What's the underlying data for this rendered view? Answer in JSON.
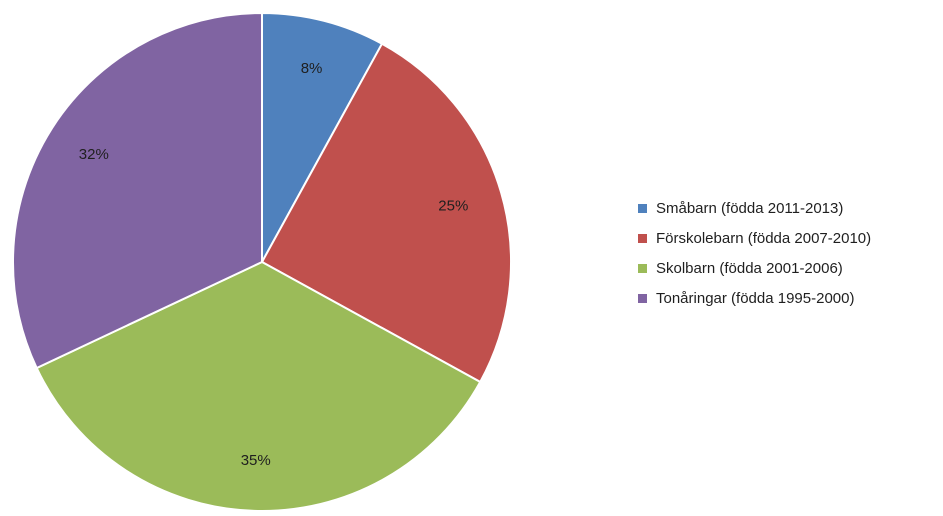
{
  "chart_data": {
    "type": "pie",
    "legend_position": "right",
    "series": [
      {
        "values": [
          8,
          25,
          35,
          32
        ],
        "labels": [
          "8%",
          "25%",
          "35%",
          "32%"
        ]
      }
    ],
    "categories": [
      "Småbarn (födda 2011-2013)",
      "Förskolebarn (födda 2007-2010)",
      "Skolbarn (födda 2001-2006)",
      "Tonåringar (födda 1995-2000)"
    ],
    "colors": [
      "#4f81bd",
      "#c0504d",
      "#9bbb59",
      "#8064a2"
    ]
  }
}
